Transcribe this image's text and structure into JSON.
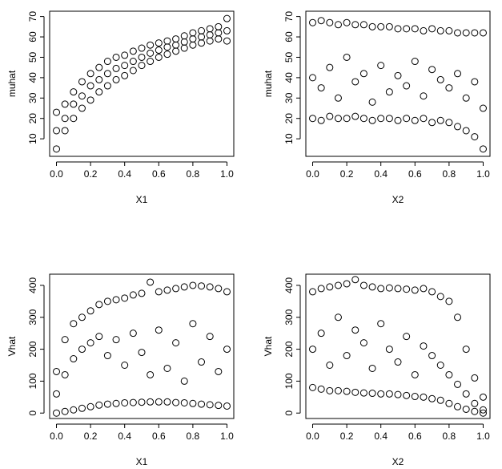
{
  "chart_data": [
    {
      "type": "scatter",
      "xlabel": "X1",
      "ylabel": "muhat",
      "x": [
        0,
        0.05,
        0.1,
        0.15,
        0.2,
        0.25,
        0.3,
        0.35,
        0.4,
        0.45,
        0.5,
        0.55,
        0.6,
        0.65,
        0.7,
        0.75,
        0.8,
        0.85,
        0.9,
        0.95,
        1,
        0,
        0.05,
        0.1,
        0.15,
        0.2,
        0.25,
        0.3,
        0.35,
        0.4,
        0.45,
        0.5,
        0.55,
        0.6,
        0.65,
        0.7,
        0.75,
        0.8,
        0.85,
        0.9,
        0.95,
        1,
        0,
        0.05,
        0.1,
        0.15,
        0.2,
        0.25,
        0.3,
        0.35,
        0.4,
        0.45,
        0.5,
        0.55,
        0.6,
        0.65,
        0.7,
        0.75,
        0.8,
        0.85,
        0.9,
        0.95,
        1
      ],
      "values": [
        5,
        14,
        20,
        25,
        29,
        33,
        36,
        39,
        41,
        43.5,
        46,
        48,
        50,
        51.5,
        53,
        54.5,
        56,
        57,
        58,
        59,
        58,
        14,
        20,
        27,
        31,
        36,
        39,
        42,
        44.5,
        46,
        48,
        50,
        52,
        53.5,
        55,
        56,
        57.5,
        59,
        60,
        61,
        62,
        63,
        23,
        27,
        33,
        38,
        42,
        45,
        48,
        50,
        51,
        53,
        54.5,
        56,
        57,
        58,
        59,
        60.5,
        62,
        63,
        64,
        65,
        69
      ],
      "xlim": [
        -0.04,
        1.04
      ],
      "ylim": [
        1.4,
        72.6
      ],
      "xticks": [
        {
          "value": 0,
          "label": "0.0"
        },
        {
          "value": 0.2,
          "label": "0.2"
        },
        {
          "value": 0.4,
          "label": "0.4"
        },
        {
          "value": 0.6,
          "label": "0.6"
        },
        {
          "value": 0.8,
          "label": "0.8"
        },
        {
          "value": 1,
          "label": "1.0"
        }
      ],
      "yticks": [
        10,
        20,
        30,
        40,
        50,
        60,
        70
      ]
    },
    {
      "type": "scatter",
      "xlabel": "X2",
      "ylabel": "muhat",
      "x": [
        0,
        0.05,
        0.1,
        0.15,
        0.2,
        0.25,
        0.3,
        0.35,
        0.4,
        0.45,
        0.5,
        0.55,
        0.6,
        0.65,
        0.7,
        0.75,
        0.8,
        0.85,
        0.9,
        0.95,
        1,
        0,
        0.05,
        0.1,
        0.15,
        0.2,
        0.25,
        0.3,
        0.35,
        0.4,
        0.45,
        0.5,
        0.55,
        0.6,
        0.65,
        0.7,
        0.75,
        0.8,
        0.85,
        0.9,
        0.95,
        1,
        0,
        0.05,
        0.1,
        0.15,
        0.2,
        0.25,
        0.3,
        0.35,
        0.4,
        0.45,
        0.5,
        0.55,
        0.6,
        0.65,
        0.7,
        0.75,
        0.8,
        0.85,
        0.9,
        0.95,
        1
      ],
      "values": [
        20,
        19,
        21,
        20,
        20,
        21,
        20,
        19,
        20,
        20,
        19,
        20,
        19,
        20,
        18,
        19,
        18,
        16,
        14,
        11,
        5,
        40,
        35,
        45,
        30,
        50,
        38,
        42,
        28,
        46,
        33,
        41,
        36,
        48,
        31,
        44,
        39,
        35,
        42,
        30,
        38,
        25,
        67,
        68,
        67,
        66,
        67,
        66,
        66,
        65,
        65,
        65,
        64,
        64,
        64,
        63,
        64,
        63,
        63,
        62,
        62,
        62,
        62
      ],
      "xlim": [
        -0.04,
        1.04
      ],
      "ylim": [
        1.4,
        72.6
      ],
      "xticks": [
        {
          "value": 0,
          "label": "0.0"
        },
        {
          "value": 0.2,
          "label": "0.2"
        },
        {
          "value": 0.4,
          "label": "0.4"
        },
        {
          "value": 0.6,
          "label": "0.6"
        },
        {
          "value": 0.8,
          "label": "0.8"
        },
        {
          "value": 1,
          "label": "1.0"
        }
      ],
      "yticks": [
        10,
        20,
        30,
        40,
        50,
        60,
        70
      ]
    },
    {
      "type": "scatter",
      "xlabel": "X1",
      "ylabel": "Vhat",
      "x": [
        0,
        0.05,
        0.1,
        0.15,
        0.2,
        0.25,
        0.3,
        0.35,
        0.4,
        0.45,
        0.5,
        0.55,
        0.6,
        0.65,
        0.7,
        0.75,
        0.8,
        0.85,
        0.9,
        0.95,
        1,
        0,
        0.05,
        0.1,
        0.15,
        0.2,
        0.25,
        0.3,
        0.35,
        0.4,
        0.45,
        0.5,
        0.55,
        0.6,
        0.65,
        0.7,
        0.75,
        0.8,
        0.85,
        0.9,
        0.95,
        1,
        0,
        0.05,
        0.1,
        0.15,
        0.2,
        0.25,
        0.3,
        0.35,
        0.4,
        0.45,
        0.5,
        0.55,
        0.6,
        0.65,
        0.7,
        0.75,
        0.8,
        0.85,
        0.9,
        0.95,
        1
      ],
      "values": [
        0,
        5,
        10,
        15,
        20,
        25,
        28,
        30,
        32,
        33,
        34,
        35,
        35,
        35,
        33,
        32,
        30,
        28,
        26,
        24,
        22,
        60,
        120,
        170,
        200,
        220,
        240,
        180,
        230,
        150,
        250,
        190,
        120,
        260,
        140,
        220,
        100,
        280,
        160,
        240,
        130,
        200,
        130,
        230,
        280,
        300,
        320,
        340,
        350,
        355,
        360,
        370,
        375,
        410,
        380,
        385,
        390,
        395,
        400,
        398,
        395,
        390,
        380
      ],
      "xlim": [
        -0.04,
        1.04
      ],
      "ylim": [
        -17,
        435
      ],
      "xticks": [
        {
          "value": 0,
          "label": "0.0"
        },
        {
          "value": 0.2,
          "label": "0.2"
        },
        {
          "value": 0.4,
          "label": "0.4"
        },
        {
          "value": 0.6,
          "label": "0.6"
        },
        {
          "value": 0.8,
          "label": "0.8"
        },
        {
          "value": 1,
          "label": "1.0"
        }
      ],
      "yticks": [
        0,
        100,
        200,
        300,
        400
      ]
    },
    {
      "type": "scatter",
      "xlabel": "X2",
      "ylabel": "Vhat",
      "x": [
        0,
        0.05,
        0.1,
        0.15,
        0.2,
        0.25,
        0.3,
        0.35,
        0.4,
        0.45,
        0.5,
        0.55,
        0.6,
        0.65,
        0.7,
        0.75,
        0.8,
        0.85,
        0.9,
        0.95,
        1,
        0,
        0.05,
        0.1,
        0.15,
        0.2,
        0.25,
        0.3,
        0.35,
        0.4,
        0.45,
        0.5,
        0.55,
        0.6,
        0.65,
        0.7,
        0.75,
        0.8,
        0.85,
        0.9,
        0.95,
        1,
        0,
        0.05,
        0.1,
        0.15,
        0.2,
        0.25,
        0.3,
        0.35,
        0.4,
        0.45,
        0.5,
        0.55,
        0.6,
        0.65,
        0.7,
        0.75,
        0.8,
        0.85,
        0.9,
        0.95,
        1
      ],
      "values": [
        80,
        75,
        70,
        70,
        68,
        65,
        63,
        62,
        60,
        60,
        58,
        55,
        52,
        50,
        45,
        40,
        30,
        20,
        12,
        5,
        0,
        200,
        250,
        150,
        300,
        180,
        260,
        220,
        140,
        280,
        200,
        160,
        240,
        120,
        210,
        180,
        150,
        120,
        90,
        60,
        30,
        10,
        380,
        390,
        395,
        400,
        405,
        418,
        400,
        395,
        390,
        392,
        390,
        388,
        385,
        390,
        380,
        365,
        350,
        300,
        200,
        110,
        50
      ],
      "xlim": [
        -0.04,
        1.04
      ],
      "ylim": [
        -17,
        435
      ],
      "xticks": [
        {
          "value": 0,
          "label": "0.0"
        },
        {
          "value": 0.2,
          "label": "0.2"
        },
        {
          "value": 0.4,
          "label": "0.4"
        },
        {
          "value": 0.6,
          "label": "0.6"
        },
        {
          "value": 0.8,
          "label": "0.8"
        },
        {
          "value": 1,
          "label": "1.0"
        }
      ],
      "yticks": [
        0,
        100,
        200,
        300,
        400
      ]
    }
  ]
}
